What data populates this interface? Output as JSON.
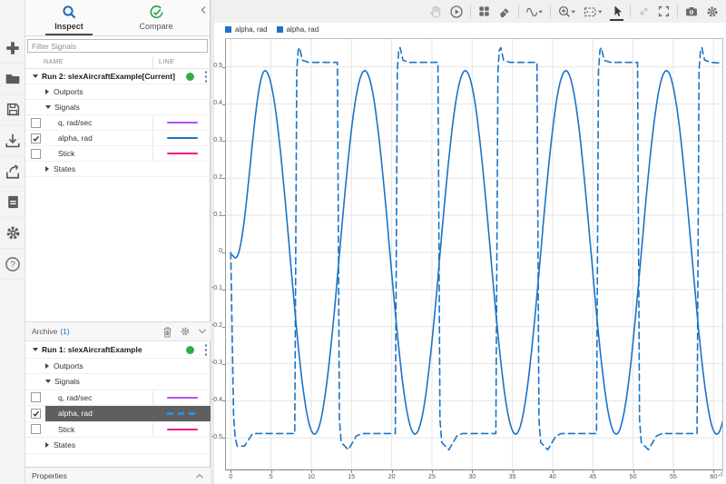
{
  "app_toolstrip": {
    "icons": [
      {
        "name": "add"
      },
      {
        "name": "open-folder"
      },
      {
        "name": "save"
      },
      {
        "name": "import"
      },
      {
        "name": "export"
      },
      {
        "name": "create-report"
      },
      {
        "name": "preferences"
      },
      {
        "name": "help"
      }
    ]
  },
  "sidebar": {
    "tabs": [
      {
        "label": "Inspect",
        "active": true
      },
      {
        "label": "Compare",
        "active": false
      }
    ],
    "filter_placeholder": "Filter Signals",
    "columns": {
      "name": "NAME",
      "line": "LINE"
    },
    "properties_label": "Properties"
  },
  "inspect_tree": {
    "run": {
      "label": "Run 2: slexAircraftExample[Current]",
      "status_color": "#2fae4d"
    },
    "groups": [
      "Outports",
      "Signals",
      "States"
    ],
    "signals": [
      {
        "name": "q, rad/sec",
        "color": "#b44ff2",
        "checked": false,
        "dashed": false
      },
      {
        "name": "alpha, rad",
        "color": "#1b74c4",
        "checked": true,
        "dashed": false
      },
      {
        "name": "Stick",
        "color": "#f3148c",
        "checked": false,
        "dashed": false
      }
    ]
  },
  "archive_tree": {
    "header": {
      "title": "Archive",
      "count": "(1)"
    },
    "run": {
      "label": "Run 1: slexAircraftExample",
      "status_color": "#2fae4d"
    },
    "groups": [
      "Outports",
      "Signals",
      "States"
    ],
    "signals": [
      {
        "name": "q, rad/sec",
        "color": "#b44ff2",
        "checked": false,
        "dashed": false,
        "selected": false
      },
      {
        "name": "alpha, rad",
        "color": "#1b74c4",
        "checked": true,
        "dashed": true,
        "selected": true
      },
      {
        "name": "Stick",
        "color": "#f3148c",
        "checked": false,
        "dashed": false,
        "selected": false
      }
    ]
  },
  "plot_toolbar": {
    "icons": [
      {
        "name": "pan",
        "disabled": true
      },
      {
        "name": "replay"
      },
      {
        "name": "subplot-layout"
      },
      {
        "name": "clear-plots"
      },
      {
        "name": "signal-wave",
        "dropdown": true
      },
      {
        "name": "zoom-in",
        "dropdown": true
      },
      {
        "name": "fit-to-view",
        "dropdown": true
      },
      {
        "name": "pointer",
        "active": true
      },
      {
        "name": "expand",
        "disabled": true
      },
      {
        "name": "fullscreen"
      },
      {
        "name": "snapshot"
      },
      {
        "name": "plot-settings"
      }
    ]
  },
  "legend": [
    {
      "label": "alpha, rad",
      "color": "#1b74c4"
    },
    {
      "label": "alpha, rad",
      "color": "#1b74c4"
    }
  ],
  "chart_data": {
    "type": "line",
    "title": "",
    "xlabel": "",
    "ylabel": "",
    "xlim": [
      -0.6,
      61.1
    ],
    "ylim": [
      -0.585,
      0.575
    ],
    "grid": true,
    "legend_position": "top-left",
    "xticks": [
      {
        "v": 0,
        "label": "0"
      },
      {
        "v": 5,
        "label": "5"
      },
      {
        "v": 10,
        "label": "10"
      },
      {
        "v": 15,
        "label": "15"
      },
      {
        "v": 20,
        "label": "20"
      },
      {
        "v": 25,
        "label": "25"
      },
      {
        "v": 30,
        "label": "30"
      },
      {
        "v": 35,
        "label": "35"
      },
      {
        "v": 40,
        "label": "40"
      },
      {
        "v": 45,
        "label": "45"
      },
      {
        "v": 50,
        "label": "50"
      },
      {
        "v": 55,
        "label": "55"
      },
      {
        "v": 60,
        "label": "60"
      }
    ],
    "yticks": [
      {
        "v": 0.5,
        "label": "0.5"
      },
      {
        "v": 0.4,
        "label": "0.4"
      },
      {
        "v": 0.3,
        "label": "0.3"
      },
      {
        "v": 0.2,
        "label": "0.2"
      },
      {
        "v": 0.1,
        "label": "0.1"
      },
      {
        "v": 0,
        "label": "0"
      },
      {
        "v": -0.1,
        "label": "-0.1"
      },
      {
        "v": -0.2,
        "label": "-0.2"
      },
      {
        "v": -0.3,
        "label": "-0.3"
      },
      {
        "v": -0.4,
        "label": "-0.4"
      },
      {
        "v": -0.5,
        "label": "-0.5"
      }
    ],
    "series": [
      {
        "name": "alpha, rad",
        "run": "Run 2: slexAircraftExample[Current]",
        "style": "solid",
        "color": "#1b74c4",
        "interp": "cosine",
        "points": [
          [
            0,
            -0.005
          ],
          [
            0.6,
            -0.015
          ],
          [
            4.25,
            0.49
          ],
          [
            10.4,
            -0.49
          ],
          [
            16.65,
            0.49
          ],
          [
            22.9,
            -0.49
          ],
          [
            29.15,
            0.49
          ],
          [
            35.4,
            -0.49
          ],
          [
            41.65,
            0.49
          ],
          [
            47.9,
            -0.49
          ],
          [
            54.15,
            0.49
          ],
          [
            60.4,
            -0.49
          ],
          [
            66.6,
            0.49
          ]
        ]
      },
      {
        "name": "alpha, rad",
        "run": "Run 1: slexAircraftExample",
        "style": "dashed",
        "color": "#1b74c4",
        "interp": "linear",
        "points": [
          [
            0,
            0
          ],
          [
            0.35,
            -0.44
          ],
          [
            0.55,
            -0.5
          ],
          [
            0.8,
            -0.522
          ],
          [
            1.7,
            -0.522
          ],
          [
            2.7,
            -0.488
          ],
          [
            7.95,
            -0.488
          ],
          [
            8.2,
            0.49
          ],
          [
            8.38,
            0.545
          ],
          [
            8.55,
            0.552
          ],
          [
            8.9,
            0.518
          ],
          [
            9.7,
            0.512
          ],
          [
            13.25,
            0.512
          ],
          [
            13.5,
            -0.45
          ],
          [
            13.72,
            -0.512
          ],
          [
            14.6,
            -0.532
          ],
          [
            15.6,
            -0.495
          ],
          [
            16.3,
            -0.488
          ],
          [
            20.45,
            -0.488
          ],
          [
            20.7,
            0.49
          ],
          [
            20.88,
            0.545
          ],
          [
            21.05,
            0.552
          ],
          [
            21.4,
            0.518
          ],
          [
            22.2,
            0.512
          ],
          [
            25.75,
            0.512
          ],
          [
            26.0,
            -0.45
          ],
          [
            26.22,
            -0.512
          ],
          [
            27.1,
            -0.532
          ],
          [
            28.1,
            -0.495
          ],
          [
            28.8,
            -0.488
          ],
          [
            32.95,
            -0.488
          ],
          [
            33.2,
            0.49
          ],
          [
            33.38,
            0.545
          ],
          [
            33.55,
            0.552
          ],
          [
            33.9,
            0.518
          ],
          [
            34.7,
            0.512
          ],
          [
            38.05,
            0.512
          ],
          [
            38.3,
            -0.45
          ],
          [
            38.52,
            -0.512
          ],
          [
            39.4,
            -0.532
          ],
          [
            40.4,
            -0.495
          ],
          [
            41.1,
            -0.488
          ],
          [
            45.45,
            -0.488
          ],
          [
            45.7,
            0.49
          ],
          [
            45.88,
            0.545
          ],
          [
            46.05,
            0.552
          ],
          [
            46.4,
            0.518
          ],
          [
            47.2,
            0.512
          ],
          [
            50.55,
            0.512
          ],
          [
            50.8,
            -0.45
          ],
          [
            51.02,
            -0.512
          ],
          [
            51.9,
            -0.532
          ],
          [
            52.9,
            -0.495
          ],
          [
            53.6,
            -0.488
          ],
          [
            57.95,
            -0.488
          ],
          [
            58.2,
            0.49
          ],
          [
            58.38,
            0.545
          ],
          [
            58.55,
            0.552
          ],
          [
            58.9,
            0.518
          ],
          [
            59.7,
            0.512
          ],
          [
            61.1,
            0.51
          ]
        ]
      }
    ]
  }
}
